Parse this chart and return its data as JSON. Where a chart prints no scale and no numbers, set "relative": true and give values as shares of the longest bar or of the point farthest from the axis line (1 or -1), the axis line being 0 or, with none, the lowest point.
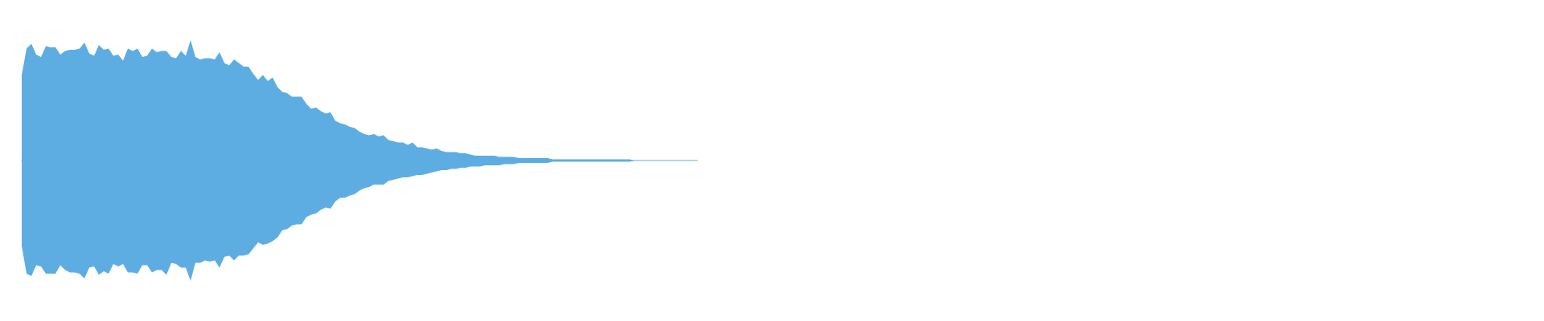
{
  "chart_data": {
    "type": "area",
    "relative": true,
    "categories": [
      null,
      null,
      null,
      null,
      null,
      null,
      null,
      null,
      null,
      null,
      null,
      null,
      null,
      null,
      null,
      null,
      null,
      null,
      null,
      null,
      null,
      null,
      null,
      null,
      null,
      null,
      null,
      null,
      null,
      null,
      null,
      null,
      null,
      null,
      null,
      null,
      null,
      null,
      null,
      null,
      null,
      null,
      null,
      null,
      null,
      null,
      null,
      null,
      null,
      null,
      null,
      null,
      null,
      null,
      null,
      null,
      null,
      null,
      null,
      null,
      null,
      null,
      null,
      null,
      null,
      null,
      null,
      null,
      null,
      null,
      null,
      null,
      null,
      null,
      null,
      null,
      null,
      null,
      null,
      null,
      null,
      null,
      null,
      null,
      null,
      null,
      null,
      null,
      null,
      null,
      null,
      null,
      null,
      null,
      null,
      null,
      null,
      null,
      null,
      null,
      null,
      null,
      null,
      null,
      null,
      null,
      null,
      null,
      null,
      null,
      null,
      null,
      null,
      null,
      null,
      null,
      null,
      null,
      null,
      null,
      null,
      null,
      null,
      null,
      null,
      null,
      null,
      null,
      null,
      null,
      null,
      null,
      null,
      null,
      null,
      null,
      null,
      null,
      null,
      null,
      null
    ],
    "ref_lines": [
      {
        "axis": "y",
        "value": 0,
        "color": "#5dade2"
      }
    ],
    "series": [
      {
        "color": "#5dade2",
        "values": [
          0.71,
          0.93,
          0.97,
          0.88,
          0.86,
          0.95,
          0.94,
          0.94,
          0.88,
          0.91,
          0.92,
          0.92,
          0.93,
          0.98,
          0.89,
          0.87,
          0.96,
          0.92,
          0.93,
          0.87,
          0.88,
          0.83,
          0.93,
          0.91,
          0.93,
          0.86,
          0.87,
          0.93,
          0.9,
          0.91,
          0.91,
          0.86,
          0.85,
          0.91,
          0.87,
          1,
          0.86,
          0.84,
          0.85,
          0.85,
          0.84,
          0.9,
          0.81,
          0.79,
          0.84,
          0.81,
          0.78,
          0.78,
          0.72,
          0.67,
          0.71,
          0.66,
          0.69,
          0.61,
          0.57,
          0.56,
          0.53,
          0.53,
          0.53,
          0.47,
          0.43,
          0.44,
          0.41,
          0.39,
          0.4,
          0.33,
          0.31,
          0.3,
          0.28,
          0.27,
          0.24,
          0.22,
          0.21,
          0.22,
          0.2,
          0.21,
          0.17,
          0.16,
          0.15,
          0.15,
          0.13,
          0.15,
          0.11,
          0.11,
          0.1,
          0.09,
          0.1,
          0.08,
          0.07,
          0.07,
          0.07,
          0.06,
          0.06,
          0.05,
          0.04,
          0.04,
          0.04,
          0.04,
          0.04,
          0.03,
          0.03,
          0.03,
          0.03,
          0.02,
          0.02,
          0.02,
          0.02,
          0.02,
          0.02,
          0.02,
          0.01,
          0.01,
          0.01,
          0.01,
          0.01,
          0.01,
          0.01,
          0.01,
          0.01,
          0.01,
          0.01,
          0.01,
          0.01,
          0.01,
          0.01,
          0.01,
          0.01,
          0,
          0,
          0,
          0,
          0,
          0,
          0,
          0,
          0,
          0,
          0,
          0,
          0,
          0
        ]
      },
      {
        "color": "#5eade2",
        "values": [
          -0.71,
          -0.94,
          -0.96,
          -0.87,
          -0.88,
          -0.94,
          -0.94,
          -0.94,
          -0.87,
          -0.91,
          -0.93,
          -0.93,
          -0.94,
          -0.98,
          -0.89,
          -0.88,
          -0.95,
          -0.92,
          -0.94,
          -0.86,
          -0.88,
          -0.86,
          -0.93,
          -0.93,
          -0.94,
          -0.87,
          -0.87,
          -0.93,
          -0.91,
          -0.91,
          -0.95,
          -0.85,
          -0.86,
          -0.89,
          -0.89,
          -1,
          -0.85,
          -0.85,
          -0.83,
          -0.84,
          -0.83,
          -0.89,
          -0.8,
          -0.79,
          -0.83,
          -0.79,
          -0.79,
          -0.78,
          -0.73,
          -0.68,
          -0.7,
          -0.69,
          -0.67,
          -0.64,
          -0.58,
          -0.57,
          -0.54,
          -0.53,
          -0.53,
          -0.47,
          -0.45,
          -0.44,
          -0.41,
          -0.39,
          -0.4,
          -0.34,
          -0.31,
          -0.31,
          -0.29,
          -0.28,
          -0.25,
          -0.23,
          -0.22,
          -0.2,
          -0.2,
          -0.2,
          -0.17,
          -0.16,
          -0.15,
          -0.14,
          -0.14,
          -0.13,
          -0.12,
          -0.12,
          -0.11,
          -0.1,
          -0.09,
          -0.08,
          -0.08,
          -0.07,
          -0.07,
          -0.06,
          -0.06,
          -0.05,
          -0.05,
          -0.05,
          -0.04,
          -0.04,
          -0.04,
          -0.04,
          -0.03,
          -0.03,
          -0.03,
          -0.02,
          -0.02,
          -0.02,
          -0.02,
          -0.02,
          -0.02,
          -0.02,
          -0.01,
          -0.01,
          -0.01,
          -0.01,
          -0.01,
          -0.01,
          -0.01,
          -0.01,
          -0.01,
          -0.01,
          -0.01,
          -0.01,
          -0.01,
          -0.01,
          -0.01,
          -0.01,
          -0.01,
          0,
          0,
          0,
          0,
          0,
          0,
          0,
          0,
          0,
          0,
          0,
          0,
          0,
          0
        ]
      }
    ]
  }
}
